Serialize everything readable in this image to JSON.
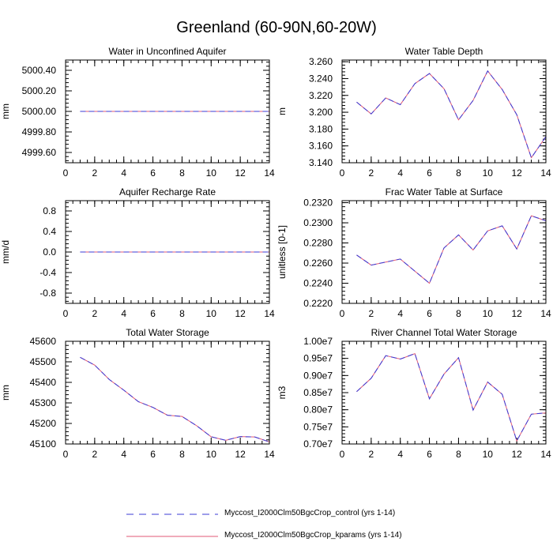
{
  "figure": {
    "title": "Greenland (60-90N,60-20W)"
  },
  "legend": [
    {
      "name": "Myccost_I2000Clm50BgcCrop_control (yrs 1-14)",
      "color": "#3b3bd6",
      "style": "dashed"
    },
    {
      "name": "Myccost_I2000Clm50BgcCrop_kparams (yrs 1-14)",
      "color": "#e05a74",
      "style": "solid"
    }
  ],
  "chart_data": [
    {
      "type": "line",
      "title": "Water in Unconfined Aquifer",
      "xlabel": "",
      "ylabel": "mm",
      "xlim": [
        0,
        14
      ],
      "ylim": [
        4999.5,
        5000.5
      ],
      "xticks": [
        0,
        2,
        4,
        6,
        8,
        10,
        12,
        14
      ],
      "yticks": [
        4999.6,
        4999.8,
        5000.0,
        5000.2,
        5000.4
      ],
      "ytick_labels": [
        "4999.60",
        "4999.80",
        "5000.00",
        "5000.20",
        "5000.40"
      ],
      "x": [
        1,
        2,
        3,
        4,
        5,
        6,
        7,
        8,
        9,
        10,
        11,
        12,
        13,
        14
      ],
      "series": [
        {
          "name": "Myccost_I2000Clm50BgcCrop_control (yrs 1-14)",
          "values": [
            5000,
            5000,
            5000,
            5000,
            5000,
            5000,
            5000,
            5000,
            5000,
            5000,
            5000,
            5000,
            5000,
            5000
          ]
        },
        {
          "name": "Myccost_I2000Clm50BgcCrop_kparams (yrs 1-14)",
          "values": [
            5000,
            5000,
            5000,
            5000,
            5000,
            5000,
            5000,
            5000,
            5000,
            5000,
            5000,
            5000,
            5000,
            5000
          ]
        }
      ]
    },
    {
      "type": "line",
      "title": "Water Table Depth",
      "xlabel": "",
      "ylabel": "m",
      "xlim": [
        0,
        14
      ],
      "ylim": [
        3.14,
        3.262
      ],
      "xticks": [
        0,
        2,
        4,
        6,
        8,
        10,
        12,
        14
      ],
      "yticks": [
        3.14,
        3.16,
        3.18,
        3.2,
        3.22,
        3.24,
        3.26
      ],
      "ytick_labels": [
        "3.140",
        "3.160",
        "3.180",
        "3.200",
        "3.220",
        "3.240",
        "3.260"
      ],
      "x": [
        1,
        2,
        3,
        4,
        5,
        6,
        7,
        8,
        9,
        10,
        11,
        12,
        13,
        14
      ],
      "series": [
        {
          "name": "Myccost_I2000Clm50BgcCrop_control (yrs 1-14)",
          "values": [
            3.212,
            3.198,
            3.217,
            3.209,
            3.234,
            3.246,
            3.228,
            3.191,
            3.214,
            3.249,
            3.227,
            3.197,
            3.146,
            3.171
          ]
        },
        {
          "name": "Myccost_I2000Clm50BgcCrop_kparams (yrs 1-14)",
          "values": [
            3.212,
            3.198,
            3.217,
            3.209,
            3.234,
            3.246,
            3.228,
            3.191,
            3.214,
            3.249,
            3.227,
            3.197,
            3.146,
            3.171
          ]
        }
      ]
    },
    {
      "type": "line",
      "title": "Aquifer Recharge Rate",
      "xlabel": "",
      "ylabel": "mm/d",
      "xlim": [
        0,
        14
      ],
      "ylim": [
        -1.0,
        1.0
      ],
      "xticks": [
        0,
        2,
        4,
        6,
        8,
        10,
        12,
        14
      ],
      "yticks": [
        -0.8,
        -0.4,
        0.0,
        0.4,
        0.8
      ],
      "ytick_labels": [
        "-0.8",
        "-0.4",
        "0.0",
        "0.4",
        "0.8"
      ],
      "x": [
        1,
        2,
        3,
        4,
        5,
        6,
        7,
        8,
        9,
        10,
        11,
        12,
        13,
        14
      ],
      "series": [
        {
          "name": "Myccost_I2000Clm50BgcCrop_control (yrs 1-14)",
          "values": [
            0,
            0,
            0,
            0,
            0,
            0,
            0,
            0,
            0,
            0,
            0,
            0,
            0,
            0
          ]
        },
        {
          "name": "Myccost_I2000Clm50BgcCrop_kparams (yrs 1-14)",
          "values": [
            0,
            0,
            0,
            0,
            0,
            0,
            0,
            0,
            0,
            0,
            0,
            0,
            0,
            0
          ]
        }
      ]
    },
    {
      "type": "line",
      "title": "Frac Water Table at Surface",
      "xlabel": "",
      "ylabel": "unitless [0-1]",
      "xlim": [
        0,
        14
      ],
      "ylim": [
        0.222,
        0.2322
      ],
      "xticks": [
        0,
        2,
        4,
        6,
        8,
        10,
        12,
        14
      ],
      "yticks": [
        0.222,
        0.224,
        0.226,
        0.228,
        0.23,
        0.232
      ],
      "ytick_labels": [
        "0.2220",
        "0.2240",
        "0.2260",
        "0.2280",
        "0.2300",
        "0.2320"
      ],
      "x": [
        1,
        2,
        3,
        4,
        5,
        6,
        7,
        8,
        9,
        10,
        11,
        12,
        13,
        14
      ],
      "series": [
        {
          "name": "Myccost_I2000Clm50BgcCrop_control (yrs 1-14)",
          "values": [
            0.2268,
            0.2258,
            0.2261,
            0.2264,
            0.2252,
            0.224,
            0.2275,
            0.2288,
            0.2273,
            0.2292,
            0.2297,
            0.2274,
            0.2307,
            0.2302
          ]
        },
        {
          "name": "Myccost_I2000Clm50BgcCrop_kparams (yrs 1-14)",
          "values": [
            0.2268,
            0.2258,
            0.2261,
            0.2264,
            0.2252,
            0.224,
            0.2275,
            0.2288,
            0.2273,
            0.2292,
            0.2297,
            0.2274,
            0.2307,
            0.2302
          ]
        }
      ]
    },
    {
      "type": "line",
      "title": "Total Water Storage",
      "xlabel": "",
      "ylabel": "mm",
      "xlim": [
        0,
        14
      ],
      "ylim": [
        45100,
        45600
      ],
      "xticks": [
        0,
        2,
        4,
        6,
        8,
        10,
        12,
        14
      ],
      "yticks": [
        45100,
        45200,
        45300,
        45400,
        45500,
        45600
      ],
      "ytick_labels": [
        "45100",
        "45200",
        "45300",
        "45400",
        "45500",
        "45600"
      ],
      "x": [
        1,
        2,
        3,
        4,
        5,
        6,
        7,
        8,
        9,
        10,
        11,
        12,
        13,
        14
      ],
      "series": [
        {
          "name": "Myccost_I2000Clm50BgcCrop_control (yrs 1-14)",
          "values": [
            45522,
            45484,
            45414,
            45362,
            45306,
            45278,
            45240,
            45234,
            45189,
            45135,
            45118,
            45136,
            45134,
            45110
          ]
        },
        {
          "name": "Myccost_I2000Clm50BgcCrop_kparams (yrs 1-14)",
          "values": [
            45522,
            45484,
            45414,
            45362,
            45306,
            45278,
            45240,
            45234,
            45189,
            45135,
            45118,
            45136,
            45134,
            45110
          ]
        }
      ]
    },
    {
      "type": "line",
      "title": "River Channel Total Water Storage",
      "xlabel": "",
      "ylabel": "m3",
      "xlim": [
        0,
        14
      ],
      "ylim": [
        7000000,
        10000000
      ],
      "xticks": [
        0,
        2,
        4,
        6,
        8,
        10,
        12,
        14
      ],
      "yticks": [
        7000000,
        7500000,
        8000000,
        8500000,
        9000000,
        9500000,
        10000000
      ],
      "ytick_labels": [
        "0.70e7",
        "0.75e7",
        "0.80e7",
        "0.85e7",
        "0.90e7",
        "0.95e7",
        "1.00e7"
      ],
      "x": [
        1,
        2,
        3,
        4,
        5,
        6,
        7,
        8,
        9,
        10,
        11,
        12,
        13,
        14
      ],
      "series": [
        {
          "name": "Myccost_I2000Clm50BgcCrop_control (yrs 1-14)",
          "values": [
            8530000,
            8920000,
            9580000,
            9480000,
            9640000,
            8320000,
            9040000,
            9520000,
            7990000,
            8810000,
            8450000,
            7090000,
            7870000,
            7910000
          ]
        },
        {
          "name": "Myccost_I2000Clm50BgcCrop_kparams (yrs 1-14)",
          "values": [
            8530000,
            8920000,
            9580000,
            9480000,
            9640000,
            8320000,
            9040000,
            9520000,
            7990000,
            8810000,
            8450000,
            7090000,
            7870000,
            7910000
          ]
        }
      ]
    }
  ]
}
